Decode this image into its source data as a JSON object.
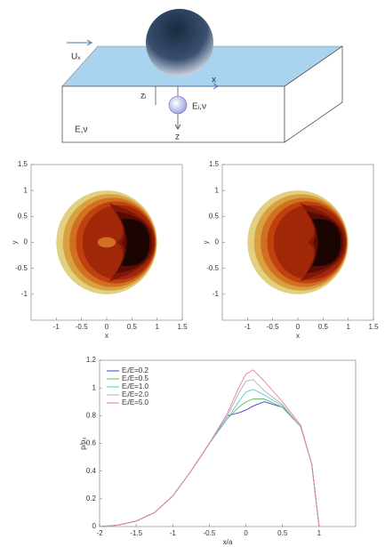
{
  "diagram": {
    "velocity": "Uₓ",
    "depth": "zᵢ",
    "inclusion": "Eᵢ,ν",
    "matrix": "E,ν",
    "x_axis": "x",
    "z_axis": "z"
  },
  "chart_data": [
    {
      "type": "contour",
      "xlabel": "x",
      "ylabel": "y",
      "xlim": [
        -1.5,
        1.5
      ],
      "ylim": [
        -1.5,
        1.5
      ],
      "xticks": [
        -1,
        -0.5,
        0,
        0.5,
        1,
        1.5
      ],
      "yticks": [
        -1,
        -0.5,
        0,
        0.5,
        1,
        1.5
      ]
    },
    {
      "type": "contour",
      "xlabel": "x",
      "ylabel": "y",
      "xlim": [
        -1.5,
        1.5
      ],
      "ylim": [
        -1.5,
        1.5
      ],
      "xticks": [
        -1,
        -0.5,
        0,
        0.5,
        1,
        1.5
      ],
      "yticks": [
        -1,
        -0.5,
        0,
        0.5,
        1,
        1.5
      ]
    },
    {
      "type": "line",
      "xlabel": "x/a",
      "ylabel": "p/p₀",
      "xlim": [
        -2,
        1.5
      ],
      "ylim": [
        0,
        1.2
      ],
      "xticks": [
        -2,
        -1.5,
        -1,
        -0.5,
        0,
        0.5,
        1
      ],
      "yticks": [
        0,
        0.2,
        0.4,
        0.6,
        0.8,
        1,
        1.2
      ],
      "x": [
        -2,
        -1.75,
        -1.5,
        -1.25,
        -1,
        -0.75,
        -0.5,
        -0.25,
        -0.1,
        0,
        0.1,
        0.25,
        0.5,
        0.75,
        0.9,
        1
      ],
      "series": [
        {
          "name": "Eᵢ/E=0.2",
          "color": "#3d3dd6",
          "values": [
            0,
            0.01,
            0.04,
            0.1,
            0.22,
            0.4,
            0.6,
            0.8,
            0.82,
            0.84,
            0.87,
            0.9,
            0.86,
            0.72,
            0.45,
            0
          ]
        },
        {
          "name": "Eᵢ/E=0.5",
          "color": "#5cb85c",
          "values": [
            0,
            0.01,
            0.04,
            0.1,
            0.22,
            0.4,
            0.6,
            0.78,
            0.86,
            0.9,
            0.92,
            0.92,
            0.86,
            0.72,
            0.45,
            0
          ]
        },
        {
          "name": "Eᵢ/E=1.0",
          "color": "#4fc9d6",
          "values": [
            0,
            0.01,
            0.04,
            0.1,
            0.22,
            0.4,
            0.6,
            0.78,
            0.9,
            0.97,
            0.99,
            0.95,
            0.87,
            0.72,
            0.45,
            0
          ]
        },
        {
          "name": "Eᵢ/E=2.0",
          "color": "#b0b0b0",
          "values": [
            0,
            0.01,
            0.04,
            0.1,
            0.22,
            0.4,
            0.6,
            0.8,
            0.96,
            1.05,
            1.06,
            0.98,
            0.88,
            0.72,
            0.45,
            0
          ]
        },
        {
          "name": "Eᵢ/E=5.0",
          "color": "#e87aa0",
          "values": [
            0,
            0.01,
            0.04,
            0.1,
            0.22,
            0.4,
            0.6,
            0.82,
            1.0,
            1.1,
            1.13,
            1.05,
            0.9,
            0.73,
            0.45,
            0
          ]
        }
      ]
    }
  ]
}
